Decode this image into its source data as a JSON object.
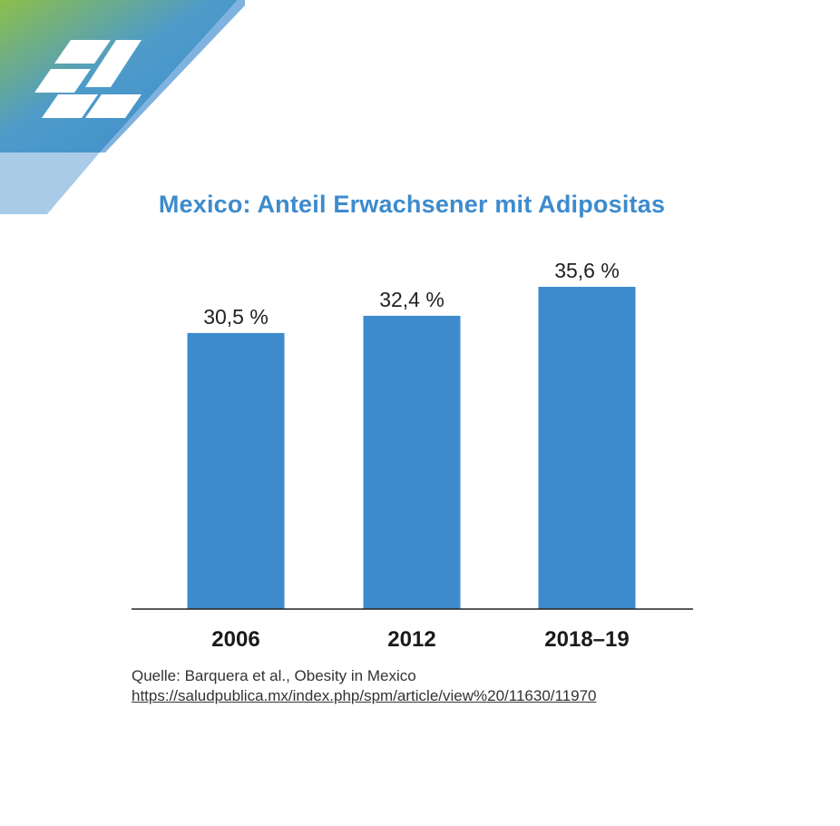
{
  "chart_data": {
    "type": "bar",
    "title": "Mexico: Anteil Erwachsener mit Adipositas",
    "categories": [
      "2006",
      "2012",
      "2018–19"
    ],
    "values": [
      30.5,
      32.4,
      35.6
    ],
    "value_labels": [
      "30,5 %",
      "32,4 %",
      "35,6 %"
    ],
    "unit": "%",
    "ylim": [
      0,
      40
    ],
    "xlabel": "",
    "ylabel": "",
    "grid": false,
    "bar_color": "#3d8bcd"
  },
  "source": {
    "text": "Quelle: Barquera et al., Obesity in Mexico",
    "link": "https://saludpublica.mx/index.php/spm/article/view%20/11630/11970"
  },
  "colors": {
    "title": "#3d8bcd",
    "logo_blue": "#3d8bcd",
    "logo_green": "#8cbf4a"
  }
}
